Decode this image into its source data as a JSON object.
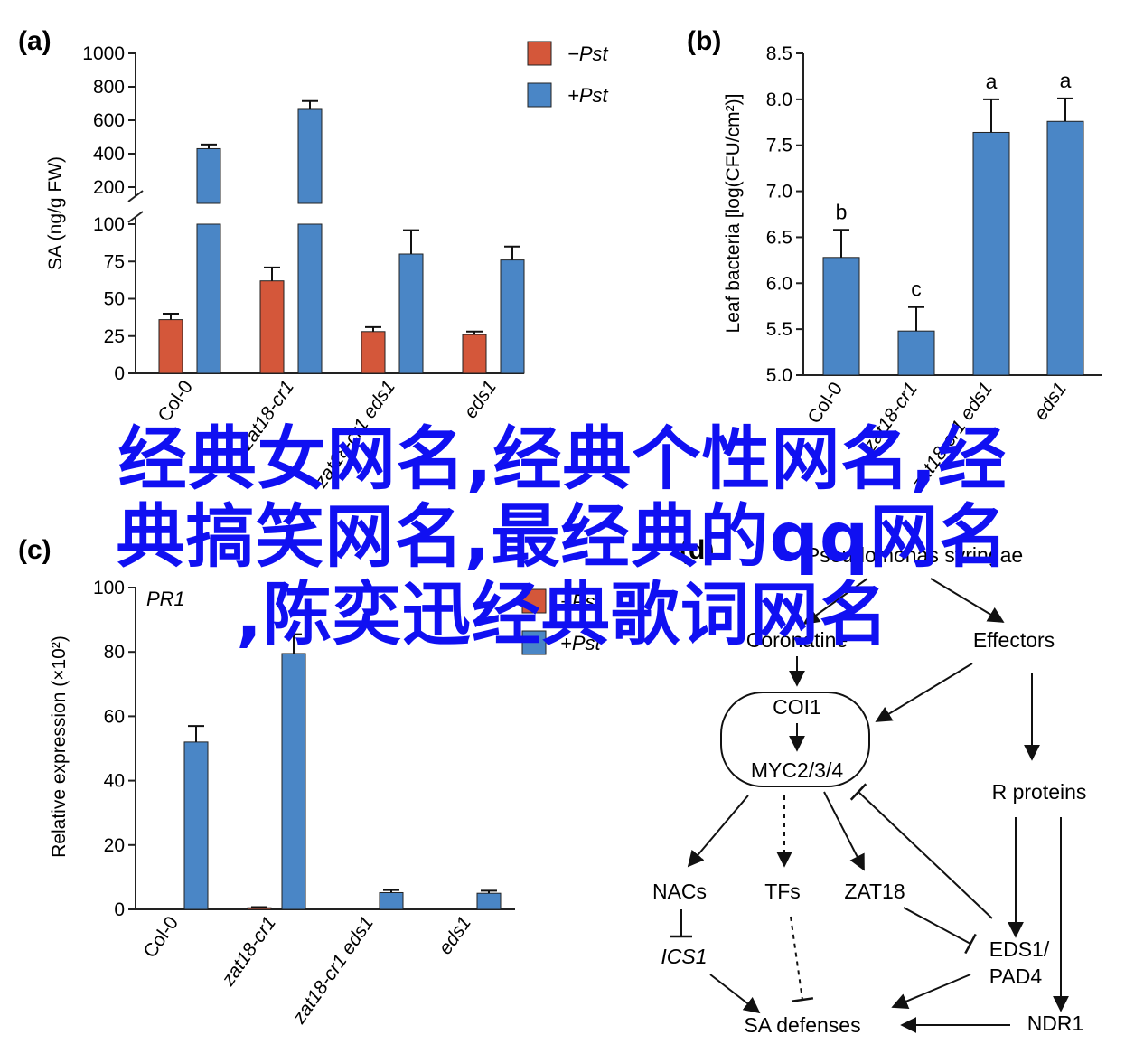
{
  "colors": {
    "minus": "#d4573a",
    "plus": "#4a86c6",
    "axis": "#222222",
    "overlay": "#1010f2"
  },
  "overlay": {
    "line1": "经典女网名,经典个性网名,经",
    "line2": "典搞笑网名,最经典的qq网名",
    "line3": ",陈奕迅经典歌词网名"
  },
  "chart_data": [
    {
      "panel": "(a)",
      "type": "bar",
      "ylabel": "SA (ng/g FW)",
      "categories": [
        "Col-0",
        "zat18-cr1",
        "zat18-cr1 eds1",
        "eds1"
      ],
      "y_broken": true,
      "ylim_lower": [
        0,
        100
      ],
      "ylim_upper": [
        200,
        1000
      ],
      "yticks_lower": [
        "0",
        "25",
        "50",
        "75",
        "100"
      ],
      "yticks_upper": [
        "200",
        "400",
        "600",
        "800",
        "1000"
      ],
      "legend": [
        "−Pst",
        "+Pst"
      ],
      "series": [
        {
          "name": "−Pst",
          "values": [
            36,
            62,
            28,
            26
          ],
          "errors": [
            4,
            9,
            3,
            2
          ]
        },
        {
          "name": "+Pst",
          "values": [
            430,
            665,
            80,
            76
          ],
          "errors": [
            25,
            50,
            16,
            9
          ]
        }
      ]
    },
    {
      "panel": "(b)",
      "type": "bar",
      "ylabel": "Leaf bacteria [log(CFU/cm²)]",
      "categories": [
        "Col-0",
        "zat18-cr1",
        "zat18-cr1 eds1",
        "eds1"
      ],
      "ylim": [
        5.0,
        8.5
      ],
      "yticks": [
        "5.0",
        "5.5",
        "6.0",
        "6.5",
        "7.0",
        "7.5",
        "8.0",
        "8.5"
      ],
      "series": [
        {
          "values": [
            6.28,
            5.48,
            7.64,
            7.76
          ],
          "errors": [
            0.3,
            0.26,
            0.36,
            0.25
          ]
        }
      ],
      "annotations": [
        "b",
        "c",
        "a",
        "a"
      ]
    },
    {
      "panel": "(c)",
      "type": "bar",
      "ylabel": "Relative expression (×10²)",
      "title": "PR1",
      "categories": [
        "Col-0",
        "zat18-cr1",
        "zat18-cr1 eds1",
        "eds1"
      ],
      "ylim": [
        0,
        100
      ],
      "yticks": [
        "0",
        "20",
        "40",
        "60",
        "80",
        "100"
      ],
      "legend": [
        "−Pst",
        "+Pst"
      ],
      "series": [
        {
          "name": "−Pst",
          "values": [
            0,
            0.5,
            0,
            0
          ],
          "errors": [
            0,
            0.2,
            0,
            0
          ]
        },
        {
          "name": "+Pst",
          "values": [
            52,
            79.5,
            5.2,
            5
          ],
          "errors": [
            5,
            6,
            0.8,
            0.8
          ]
        }
      ]
    }
  ],
  "diagram": {
    "panel": "(d)",
    "nodes": {
      "pathogen": "Pseudomonas syringae",
      "coronatine": "Coronatine",
      "effectors": "Effectors",
      "coi1": "COI1",
      "myc": "MYC2/3/4",
      "rproteins": "R proteins",
      "nacs": "NACs",
      "tfs": "TFs",
      "zat18": "ZAT18",
      "ics1": "ICS1",
      "eds1": "EDS1/",
      "pad4": "PAD4",
      "sadef": "SA defenses",
      "ndr1": "NDR1"
    }
  }
}
